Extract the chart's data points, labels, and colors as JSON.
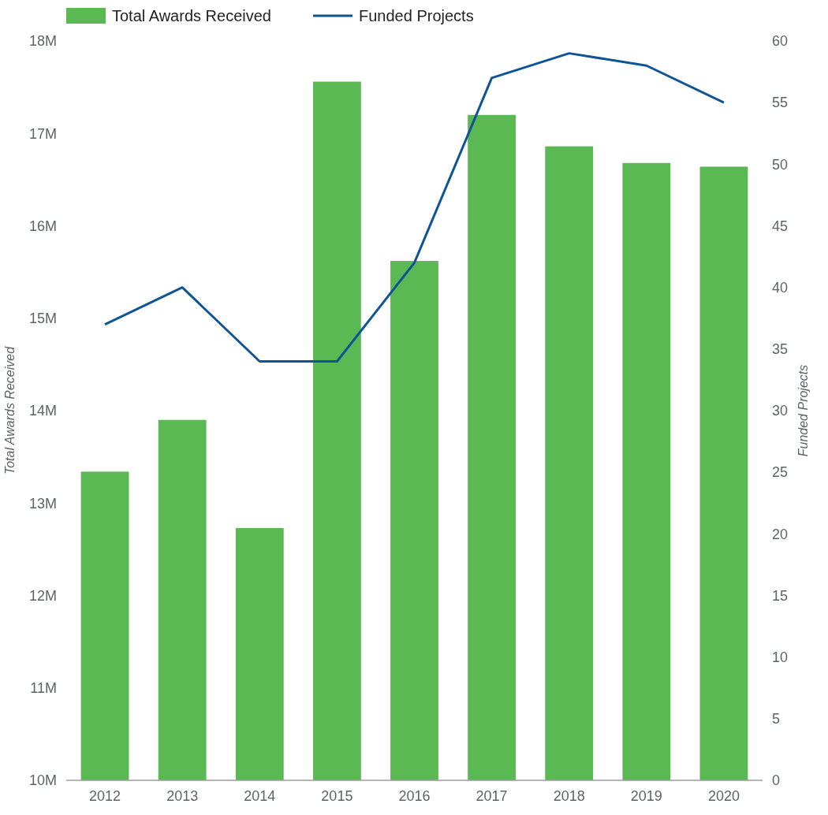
{
  "chart_data": {
    "type": "bar",
    "categories": [
      "2012",
      "2013",
      "2014",
      "2015",
      "2016",
      "2017",
      "2018",
      "2019",
      "2020"
    ],
    "series": [
      {
        "name": "Total Awards Received",
        "color": "#5ab952",
        "values": [
          13340000,
          13900000,
          12730000,
          17560000,
          15620000,
          17200000,
          16860000,
          16680000,
          16640000
        ]
      },
      {
        "name": "Funded Projects",
        "type": "line",
        "axis": "y2",
        "color": "#0f5596",
        "values": [
          37,
          40,
          34,
          34,
          42,
          57,
          59,
          58,
          55
        ]
      }
    ],
    "ylabel": "Total Awards Received",
    "y2label": "Funded Projects",
    "ylim": [
      10000000,
      18000000
    ],
    "yticks": [
      {
        "value": 10000000,
        "label": "10M"
      },
      {
        "value": 11000000,
        "label": "11M"
      },
      {
        "value": 12000000,
        "label": "12M"
      },
      {
        "value": 13000000,
        "label": "13M"
      },
      {
        "value": 14000000,
        "label": "14M"
      },
      {
        "value": 15000000,
        "label": "15M"
      },
      {
        "value": 16000000,
        "label": "16M"
      },
      {
        "value": 17000000,
        "label": "17M"
      },
      {
        "value": 18000000,
        "label": "18M"
      }
    ],
    "y2lim": [
      0,
      60
    ],
    "y2ticks": [
      0,
      5,
      10,
      15,
      20,
      25,
      30,
      35,
      40,
      45,
      50,
      55,
      60
    ],
    "legend": "top left",
    "grid": false,
    "marker": "none",
    "line_style": "solid"
  }
}
